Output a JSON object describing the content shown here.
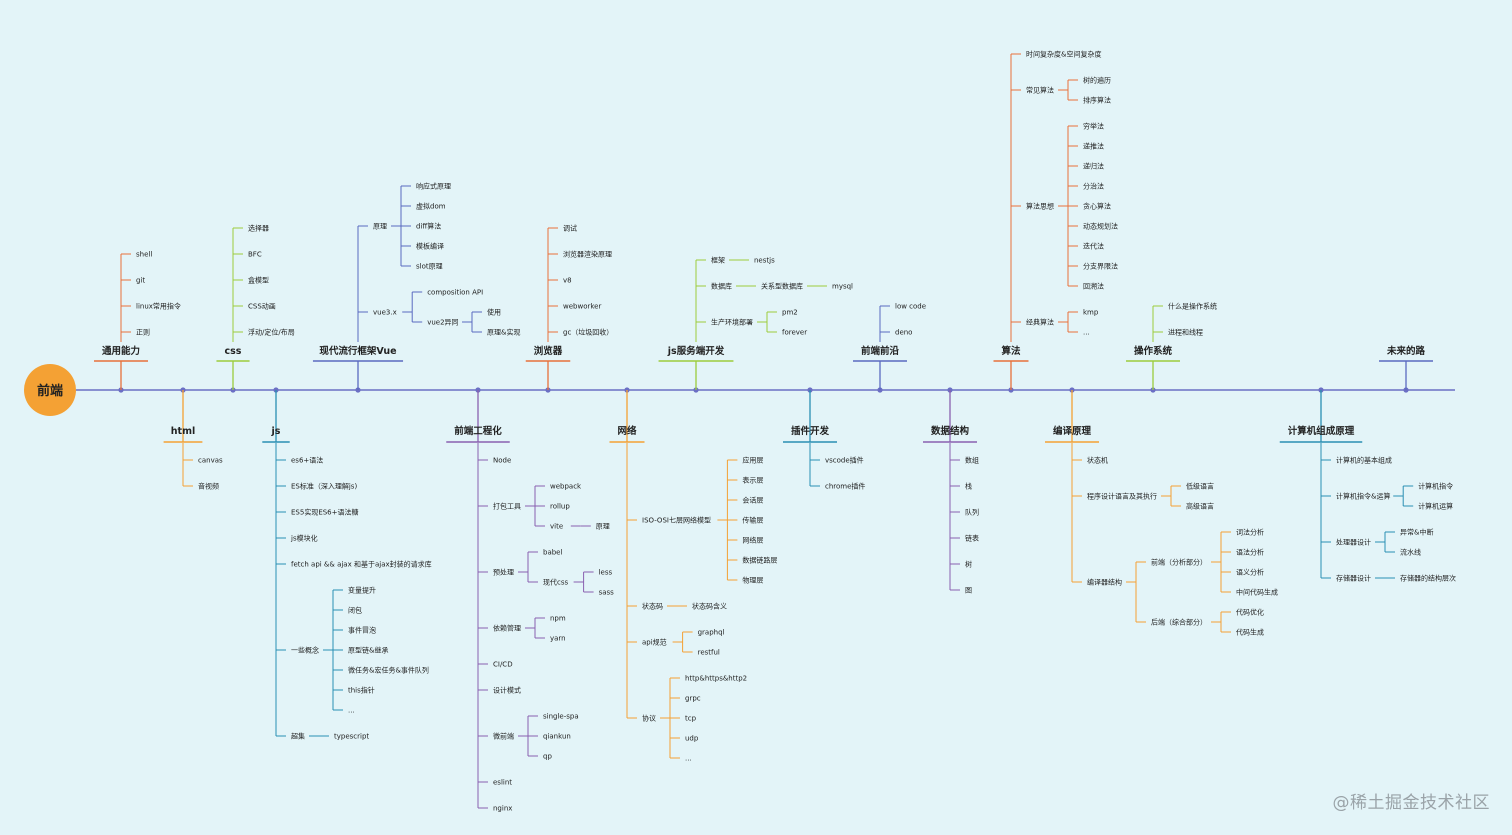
{
  "root": {
    "label": "前端",
    "color": "#f4a134"
  },
  "watermark": "@稀土掘金技术社区",
  "categories": [
    {
      "label": "通用能力",
      "color": "#e8703a",
      "side": "up",
      "children": [
        {
          "label": "shell"
        },
        {
          "label": "git"
        },
        {
          "label": "linux常用指令"
        },
        {
          "label": "正则"
        }
      ]
    },
    {
      "label": "html",
      "color": "#f4a134",
      "side": "down",
      "children": [
        {
          "label": "canvas"
        },
        {
          "label": "音视频"
        }
      ]
    },
    {
      "label": "css",
      "color": "#9ccc3c",
      "side": "up",
      "children": [
        {
          "label": "选择器"
        },
        {
          "label": "BFC"
        },
        {
          "label": "盒模型"
        },
        {
          "label": "CSS动画"
        },
        {
          "label": "浮动/定位/布局"
        }
      ]
    },
    {
      "label": "js",
      "color": "#2a8fb3",
      "side": "down",
      "children": [
        {
          "label": "es6+语法"
        },
        {
          "label": "ES标准（深入理解js)"
        },
        {
          "label": "ES5实现ES6+语法糖"
        },
        {
          "label": "js模块化"
        },
        {
          "label": "fetch api && ajax 和基于ajax封装的请求库"
        },
        {
          "label": "一些概念",
          "children": [
            {
              "label": "变量提升"
            },
            {
              "label": "闭包"
            },
            {
              "label": "事件冒泡"
            },
            {
              "label": "原型链&继承"
            },
            {
              "label": "微任务&宏任务&事件队列"
            },
            {
              "label": "this指针"
            },
            {
              "label": "..."
            }
          ]
        },
        {
          "label": "超集",
          "children": [
            {
              "label": "typescript"
            }
          ]
        }
      ]
    },
    {
      "label": "现代流行框架Vue",
      "color": "#5a6ac0",
      "side": "up",
      "children": [
        {
          "label": "原理",
          "children": [
            {
              "label": "响应式原理"
            },
            {
              "label": "虚拟dom"
            },
            {
              "label": "diff算法"
            },
            {
              "label": "模板编译"
            },
            {
              "label": "slot原理"
            }
          ]
        },
        {
          "label": "vue3.x",
          "children": [
            {
              "label": "composition API"
            },
            {
              "label": "vue2异同",
              "children": [
                {
                  "label": "使用"
                },
                {
                  "label": "原理&实现"
                }
              ]
            }
          ]
        }
      ]
    },
    {
      "label": "前端工程化",
      "color": "#8a60b0",
      "side": "down",
      "children": [
        {
          "label": "Node"
        },
        {
          "label": "打包工具",
          "children": [
            {
              "label": "webpack"
            },
            {
              "label": "rollup"
            },
            {
              "label": "vite",
              "children": [
                {
                  "label": "原理"
                }
              ]
            }
          ]
        },
        {
          "label": "预处理",
          "children": [
            {
              "label": "babel"
            },
            {
              "label": "现代css",
              "children": [
                {
                  "label": "less"
                },
                {
                  "label": "sass"
                }
              ]
            }
          ]
        },
        {
          "label": "依赖管理",
          "children": [
            {
              "label": "npm"
            },
            {
              "label": "yarn"
            }
          ]
        },
        {
          "label": "CI/CD"
        },
        {
          "label": "设计模式"
        },
        {
          "label": "微前端",
          "children": [
            {
              "label": "single-spa"
            },
            {
              "label": "qiankun"
            },
            {
              "label": "qp"
            }
          ]
        },
        {
          "label": "eslint"
        },
        {
          "label": "nginx"
        }
      ]
    },
    {
      "label": "浏览器",
      "color": "#e8703a",
      "side": "up",
      "children": [
        {
          "label": "调试"
        },
        {
          "label": "浏览器渲染原理"
        },
        {
          "label": "v8"
        },
        {
          "label": "webworker"
        },
        {
          "label": "gc（垃圾回收）"
        }
      ]
    },
    {
      "label": "网络",
      "color": "#f4a134",
      "side": "down",
      "children": [
        {
          "label": "ISO-OSI七层网络模型",
          "children": [
            {
              "label": "应用层"
            },
            {
              "label": "表示层"
            },
            {
              "label": "会话层"
            },
            {
              "label": "传输层"
            },
            {
              "label": "网络层"
            },
            {
              "label": "数据链路层"
            },
            {
              "label": "物理层"
            }
          ]
        },
        {
          "label": "状态码",
          "children": [
            {
              "label": "状态码含义"
            }
          ]
        },
        {
          "label": "api规范",
          "children": [
            {
              "label": "graphql"
            },
            {
              "label": "restful"
            }
          ]
        },
        {
          "label": "协议",
          "children": [
            {
              "label": "http&https&http2"
            },
            {
              "label": "grpc"
            },
            {
              "label": "tcp"
            },
            {
              "label": "udp"
            },
            {
              "label": "..."
            }
          ]
        }
      ]
    },
    {
      "label": "js服务端开发",
      "color": "#9ccc3c",
      "side": "up",
      "children": [
        {
          "label": "框架",
          "children": [
            {
              "label": "nestjs"
            }
          ]
        },
        {
          "label": "数据库",
          "children": [
            {
              "label": "关系型数据库",
              "children": [
                {
                  "label": "mysql"
                }
              ]
            }
          ]
        },
        {
          "label": "生产环境部署",
          "children": [
            {
              "label": "pm2"
            },
            {
              "label": "forever"
            }
          ]
        }
      ]
    },
    {
      "label": "插件开发",
      "color": "#2a8fb3",
      "side": "down",
      "children": [
        {
          "label": "vscode插件"
        },
        {
          "label": "chrome插件"
        }
      ]
    },
    {
      "label": "前端前沿",
      "color": "#5a6ac0",
      "side": "up",
      "children": [
        {
          "label": "low code"
        },
        {
          "label": "deno"
        }
      ]
    },
    {
      "label": "数据结构",
      "color": "#8a60b0",
      "side": "down",
      "children": [
        {
          "label": "数组"
        },
        {
          "label": "栈"
        },
        {
          "label": "队列"
        },
        {
          "label": "链表"
        },
        {
          "label": "树"
        },
        {
          "label": "图"
        }
      ]
    },
    {
      "label": "算法",
      "color": "#e8703a",
      "side": "up",
      "children": [
        {
          "label": "时间复杂度&空间复杂度"
        },
        {
          "label": "常见算法",
          "children": [
            {
              "label": "树的遍历"
            },
            {
              "label": "排序算法"
            }
          ]
        },
        {
          "label": "算法思想",
          "children": [
            {
              "label": "穷举法"
            },
            {
              "label": "递推法"
            },
            {
              "label": "递归法"
            },
            {
              "label": "分治法"
            },
            {
              "label": "贪心算法"
            },
            {
              "label": "动态规划法"
            },
            {
              "label": "迭代法"
            },
            {
              "label": "分支界限法"
            },
            {
              "label": "回溯法"
            }
          ]
        },
        {
          "label": "经典算法",
          "children": [
            {
              "label": "kmp"
            },
            {
              "label": "..."
            }
          ]
        }
      ]
    },
    {
      "label": "编译原理",
      "color": "#f4a134",
      "side": "down",
      "children": [
        {
          "label": "状态机"
        },
        {
          "label": "程序设计语言及其执行",
          "children": [
            {
              "label": "低级语言"
            },
            {
              "label": "高级语言"
            }
          ]
        },
        {
          "label": "编译器结构",
          "children": [
            {
              "label": "前端（分析部分）",
              "children": [
                {
                  "label": "词法分析"
                },
                {
                  "label": "语法分析"
                },
                {
                  "label": "语义分析"
                },
                {
                  "label": "中间代码生成"
                }
              ]
            },
            {
              "label": "后端（综合部分）",
              "children": [
                {
                  "label": "代码优化"
                },
                {
                  "label": "代码生成"
                }
              ]
            }
          ]
        }
      ]
    },
    {
      "label": "操作系统",
      "color": "#9ccc3c",
      "side": "up",
      "children": [
        {
          "label": "什么是操作系统"
        },
        {
          "label": "进程和线程"
        }
      ]
    },
    {
      "label": "计算机组成原理",
      "color": "#2a8fb3",
      "side": "down",
      "children": [
        {
          "label": "计算机的基本组成"
        },
        {
          "label": "计算机指令&运算",
          "children": [
            {
              "label": "计算机指令"
            },
            {
              "label": "计算机运算"
            }
          ]
        },
        {
          "label": "处理器设计",
          "children": [
            {
              "label": "异常&中断"
            },
            {
              "label": "流水线"
            }
          ]
        },
        {
          "label": "存储器设计",
          "children": [
            {
              "label": "存储器的结构层次"
            }
          ]
        }
      ]
    },
    {
      "label": "未来的路",
      "color": "#5a6ac0",
      "side": "up",
      "children": []
    }
  ]
}
